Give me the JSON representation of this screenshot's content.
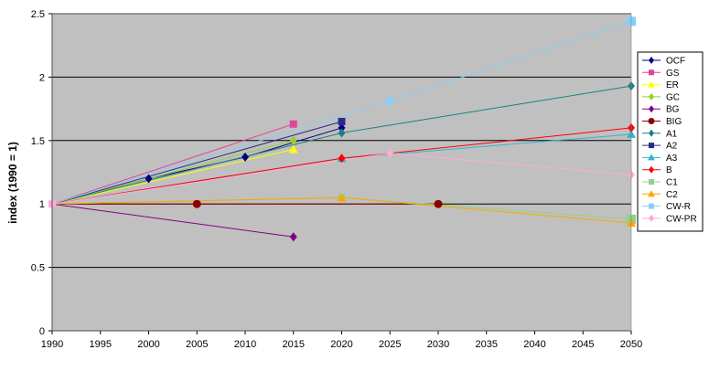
{
  "chart_data": {
    "type": "line",
    "xlabel": "",
    "ylabel": "index  (1990  =  1)",
    "xlim": [
      1990,
      2050
    ],
    "ylim": [
      0,
      2.5
    ],
    "x_ticks": [
      "1990",
      "1995",
      "2000",
      "2005",
      "2010",
      "2015",
      "2020",
      "2025",
      "2030",
      "2035",
      "2040",
      "2045",
      "2050"
    ],
    "y_ticks": [
      "0",
      "0.5",
      "1",
      "1.5",
      "2",
      "2.5"
    ],
    "grid": "horizontal",
    "legend_position": "right",
    "plot_background": "#c0c0c0",
    "series": [
      {
        "name": "OCF",
        "color": "#000080",
        "marker": "diamond",
        "points": [
          [
            1990,
            1.0
          ],
          [
            2000,
            1.2
          ],
          [
            2010,
            1.37
          ],
          [
            2020,
            1.6
          ]
        ]
      },
      {
        "name": "GS",
        "color": "#e0449a",
        "marker": "square",
        "points": [
          [
            1990,
            1.0
          ],
          [
            2015,
            1.63
          ]
        ]
      },
      {
        "name": "ER",
        "color": "#ffff00",
        "marker": "triangle",
        "points": [
          [
            1990,
            1.0
          ],
          [
            2015,
            1.43
          ]
        ]
      },
      {
        "name": "GC",
        "color": "#9acd32",
        "marker": "diamond",
        "points": [
          [
            1990,
            1.0
          ],
          [
            2015,
            1.5
          ]
        ]
      },
      {
        "name": "BG",
        "color": "#800080",
        "marker": "diamond",
        "points": [
          [
            1990,
            1.0
          ],
          [
            2015,
            0.74
          ]
        ]
      },
      {
        "name": "BIG",
        "color": "#8b0000",
        "marker": "circle",
        "points": [
          [
            1990,
            1.0
          ],
          [
            2005,
            1.0
          ],
          [
            2030,
            1.0
          ]
        ]
      },
      {
        "name": "A1",
        "color": "#1e8080",
        "marker": "diamond",
        "points": [
          [
            1990,
            1.0
          ],
          [
            2020,
            1.56
          ],
          [
            2050,
            1.93
          ]
        ]
      },
      {
        "name": "A2",
        "color": "#2a2a8c",
        "marker": "square",
        "points": [
          [
            1990,
            1.0
          ],
          [
            2020,
            1.65
          ]
        ]
      },
      {
        "name": "A3",
        "color": "#33b5cc",
        "marker": "triangle",
        "points": [
          [
            1990,
            1.0
          ],
          [
            2020,
            1.36
          ],
          [
            2050,
            1.55
          ]
        ]
      },
      {
        "name": "B",
        "color": "#ff0000",
        "marker": "diamond",
        "points": [
          [
            1990,
            1.0
          ],
          [
            2020,
            1.36
          ],
          [
            2050,
            1.6
          ]
        ]
      },
      {
        "name": "C1",
        "color": "#8fd18f",
        "marker": "square",
        "points": [
          [
            1990,
            1.0
          ],
          [
            2020,
            1.05
          ],
          [
            2050,
            0.88
          ]
        ]
      },
      {
        "name": "C2",
        "color": "#ffa500",
        "marker": "triangle",
        "points": [
          [
            1990,
            1.0
          ],
          [
            2020,
            1.05
          ],
          [
            2050,
            0.85
          ]
        ]
      },
      {
        "name": "CW-R",
        "color": "#87cefa",
        "marker": "square",
        "points": [
          [
            1990,
            1.0
          ],
          [
            2025,
            1.81
          ],
          [
            2050,
            2.44
          ]
        ]
      },
      {
        "name": "CW-PR",
        "color": "#ffaad4",
        "marker": "diamond",
        "points": [
          [
            1990,
            1.0
          ],
          [
            2025,
            1.4
          ],
          [
            2050,
            1.23
          ]
        ]
      }
    ]
  }
}
